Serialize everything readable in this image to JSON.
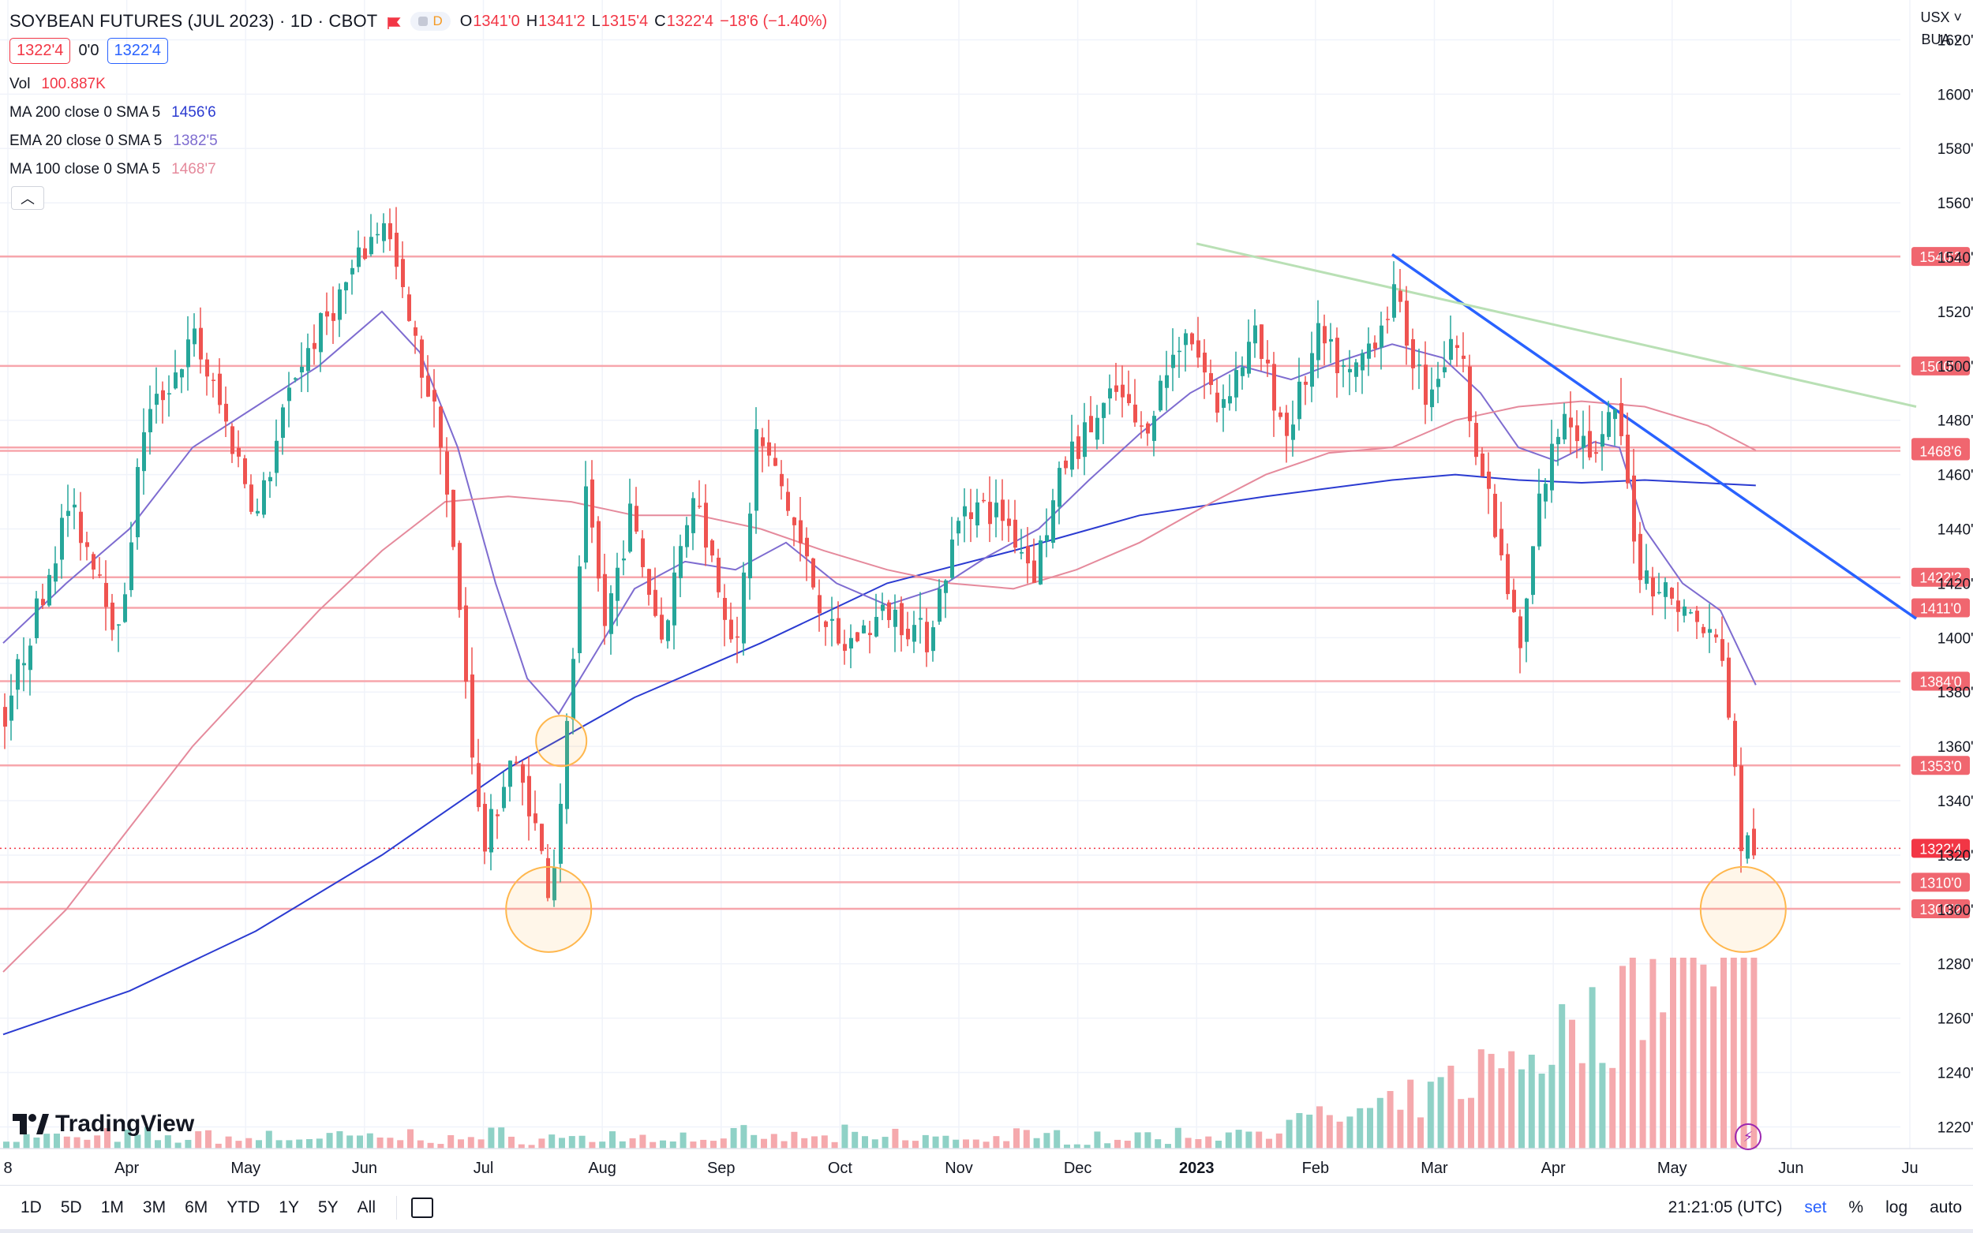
{
  "header": {
    "symbol": "SOYBEAN FUTURES (JUL 2023) · 1D · CBOT",
    "badge": "D",
    "ohlc": {
      "o_label": "O",
      "o": "1341'0",
      "h_label": "H",
      "h": "1341'2",
      "l_label": "L",
      "l": "1315'4",
      "c_label": "C",
      "c": "1322'4",
      "change": "−18'6 (−1.40%)"
    },
    "bid": "1322'4",
    "spread": "0'0",
    "ask": "1322'4"
  },
  "indicators": [
    {
      "name": "Vol",
      "value": "100.887K",
      "color": "#f23645"
    },
    {
      "name": "MA 200 close 0 SMA 5",
      "value": "1456'6",
      "color": "#2b3bd1"
    },
    {
      "name": "EMA 20 close 0 SMA 5",
      "value": "1382'5",
      "color": "#7e6cd0"
    },
    {
      "name": "MA 100 close 0 SMA 5",
      "value": "1468'7",
      "color": "#e58a9c"
    }
  ],
  "axis_top": {
    "currency": "USX",
    "unit": "BUA"
  },
  "chart_data": {
    "type": "candlestick",
    "ylim": [
      1212,
      1630
    ],
    "y_ticks": [
      "1220'0",
      "1240'0",
      "1260'0",
      "1280'0",
      "1300'0",
      "1320'0",
      "1340'0",
      "1360'0",
      "1380'0",
      "1400'0",
      "1420'0",
      "1440'0",
      "1460'0",
      "1480'0",
      "1500'0",
      "1520'0",
      "1540'0",
      "1560'0",
      "1580'0",
      "1600'0",
      "1620'0"
    ],
    "x_labels": [
      "8",
      "Apr",
      "May",
      "Jun",
      "Jul",
      "Aug",
      "Sep",
      "Oct",
      "Nov",
      "Dec",
      "2023",
      "Feb",
      "Mar",
      "Apr",
      "May",
      "Jun",
      "Ju"
    ],
    "levels": [
      {
        "label": "1540'2",
        "value": 1540.25
      },
      {
        "label": "1500'0",
        "value": 1500
      },
      {
        "label": "1470'0",
        "value": 1470
      },
      {
        "label": "1468'6",
        "value": 1468.75
      },
      {
        "label": "1422'2",
        "value": 1422.25
      },
      {
        "label": "1411'0",
        "value": 1411
      },
      {
        "label": "1384'0",
        "value": 1384
      },
      {
        "label": "1353'0",
        "value": 1353
      },
      {
        "label": "1310'0",
        "value": 1310
      },
      {
        "label": "1300'2",
        "value": 1300.25
      }
    ],
    "last_price": {
      "label": "1322'4",
      "value": 1322.5
    },
    "anchors": [
      {
        "x": 0,
        "p": 1372
      },
      {
        "x": 50,
        "p": 1448
      },
      {
        "x": 75,
        "p": 1425
      },
      {
        "x": 90,
        "p": 1400
      },
      {
        "x": 110,
        "p": 1478
      },
      {
        "x": 150,
        "p": 1510
      },
      {
        "x": 170,
        "p": 1485
      },
      {
        "x": 200,
        "p": 1445
      },
      {
        "x": 230,
        "p": 1498
      },
      {
        "x": 270,
        "p": 1530
      },
      {
        "x": 300,
        "p": 1555
      },
      {
        "x": 320,
        "p": 1515
      },
      {
        "x": 345,
        "p": 1475
      },
      {
        "x": 362,
        "p": 1400
      },
      {
        "x": 378,
        "p": 1320
      },
      {
        "x": 400,
        "p": 1355
      },
      {
        "x": 415,
        "p": 1340
      },
      {
        "x": 432,
        "p": 1305
      },
      {
        "x": 445,
        "p": 1365
      },
      {
        "x": 460,
        "p": 1450
      },
      {
        "x": 475,
        "p": 1405
      },
      {
        "x": 495,
        "p": 1445
      },
      {
        "x": 520,
        "p": 1400
      },
      {
        "x": 545,
        "p": 1455
      },
      {
        "x": 580,
        "p": 1395
      },
      {
        "x": 595,
        "p": 1475
      },
      {
        "x": 615,
        "p": 1455
      },
      {
        "x": 640,
        "p": 1420
      },
      {
        "x": 660,
        "p": 1395
      },
      {
        "x": 700,
        "p": 1410
      },
      {
        "x": 730,
        "p": 1400
      },
      {
        "x": 760,
        "p": 1450
      },
      {
        "x": 790,
        "p": 1445
      },
      {
        "x": 815,
        "p": 1425
      },
      {
        "x": 840,
        "p": 1465
      },
      {
        "x": 880,
        "p": 1490
      },
      {
        "x": 900,
        "p": 1475
      },
      {
        "x": 935,
        "p": 1515
      },
      {
        "x": 960,
        "p": 1485
      },
      {
        "x": 990,
        "p": 1510
      },
      {
        "x": 1015,
        "p": 1475
      },
      {
        "x": 1040,
        "p": 1510
      },
      {
        "x": 1065,
        "p": 1495
      },
      {
        "x": 1100,
        "p": 1525
      },
      {
        "x": 1125,
        "p": 1490
      },
      {
        "x": 1150,
        "p": 1510
      },
      {
        "x": 1170,
        "p": 1460
      },
      {
        "x": 1200,
        "p": 1395
      },
      {
        "x": 1215,
        "p": 1450
      },
      {
        "x": 1235,
        "p": 1485
      },
      {
        "x": 1260,
        "p": 1465
      },
      {
        "x": 1275,
        "p": 1485
      },
      {
        "x": 1295,
        "p": 1425
      },
      {
        "x": 1320,
        "p": 1415
      },
      {
        "x": 1340,
        "p": 1405
      },
      {
        "x": 1360,
        "p": 1395
      },
      {
        "x": 1375,
        "p": 1325
      },
      {
        "x": 1388,
        "p": 1322.5
      }
    ],
    "series": [
      {
        "name": "MA 200",
        "color": "#2b3bd1",
        "points": [
          [
            0,
            1254
          ],
          [
            100,
            1270
          ],
          [
            200,
            1292
          ],
          [
            300,
            1320
          ],
          [
            400,
            1352
          ],
          [
            500,
            1378
          ],
          [
            600,
            1398
          ],
          [
            700,
            1420
          ],
          [
            800,
            1432
          ],
          [
            900,
            1445
          ],
          [
            1000,
            1452
          ],
          [
            1100,
            1458
          ],
          [
            1150,
            1460
          ],
          [
            1200,
            1458
          ],
          [
            1250,
            1457
          ],
          [
            1300,
            1458
          ],
          [
            1388,
            1456
          ]
        ]
      },
      {
        "name": "EMA 20",
        "color": "#7e6cd0",
        "points": [
          [
            0,
            1398
          ],
          [
            50,
            1420
          ],
          [
            100,
            1440
          ],
          [
            150,
            1470
          ],
          [
            200,
            1485
          ],
          [
            250,
            1500
          ],
          [
            300,
            1520
          ],
          [
            330,
            1505
          ],
          [
            360,
            1470
          ],
          [
            390,
            1420
          ],
          [
            415,
            1385
          ],
          [
            440,
            1372
          ],
          [
            470,
            1395
          ],
          [
            500,
            1418
          ],
          [
            540,
            1428
          ],
          [
            580,
            1425
          ],
          [
            620,
            1435
          ],
          [
            660,
            1420
          ],
          [
            700,
            1412
          ],
          [
            740,
            1418
          ],
          [
            780,
            1430
          ],
          [
            820,
            1440
          ],
          [
            860,
            1458
          ],
          [
            900,
            1475
          ],
          [
            940,
            1490
          ],
          [
            980,
            1500
          ],
          [
            1020,
            1495
          ],
          [
            1060,
            1502
          ],
          [
            1100,
            1508
          ],
          [
            1140,
            1503
          ],
          [
            1170,
            1490
          ],
          [
            1200,
            1470
          ],
          [
            1230,
            1465
          ],
          [
            1260,
            1472
          ],
          [
            1280,
            1470
          ],
          [
            1300,
            1440
          ],
          [
            1330,
            1420
          ],
          [
            1360,
            1410
          ],
          [
            1388,
            1382.6
          ]
        ]
      },
      {
        "name": "MA 100",
        "color": "#e58a9c",
        "points": [
          [
            0,
            1277
          ],
          [
            50,
            1300
          ],
          [
            100,
            1330
          ],
          [
            150,
            1360
          ],
          [
            200,
            1385
          ],
          [
            250,
            1410
          ],
          [
            300,
            1432
          ],
          [
            350,
            1450
          ],
          [
            400,
            1452
          ],
          [
            450,
            1450
          ],
          [
            500,
            1445
          ],
          [
            550,
            1445
          ],
          [
            600,
            1440
          ],
          [
            650,
            1432
          ],
          [
            700,
            1425
          ],
          [
            750,
            1420
          ],
          [
            800,
            1418
          ],
          [
            850,
            1425
          ],
          [
            900,
            1435
          ],
          [
            950,
            1448
          ],
          [
            1000,
            1460
          ],
          [
            1050,
            1468
          ],
          [
            1100,
            1470
          ],
          [
            1150,
            1480
          ],
          [
            1200,
            1485
          ],
          [
            1250,
            1487
          ],
          [
            1300,
            1485
          ],
          [
            1350,
            1478
          ],
          [
            1388,
            1468.9
          ]
        ]
      }
    ],
    "trendlines": [
      {
        "color": "#2962ff",
        "from": {
          "x": 1100,
          "p": 1541
        },
        "to": {
          "x": 1515,
          "p": 1407
        }
      },
      {
        "color": "#b9e0b5",
        "from": {
          "x": 945,
          "p": 1545
        },
        "to": {
          "x": 1515,
          "p": 1485
        }
      }
    ],
    "highlights": [
      {
        "x": 442,
        "p": 1362
      },
      {
        "x": 432,
        "p": 1300
      },
      {
        "x": 1378,
        "p": 1300
      }
    ],
    "volume": {
      "max_label": "≈113K"
    }
  },
  "toolbar": {
    "ranges": [
      "1D",
      "5D",
      "1M",
      "3M",
      "6M",
      "YTD",
      "1Y",
      "5Y",
      "All"
    ],
    "time": "21:21:05 (UTC)",
    "right": [
      "set",
      "%",
      "log",
      "auto"
    ]
  },
  "branding": "TradingView"
}
